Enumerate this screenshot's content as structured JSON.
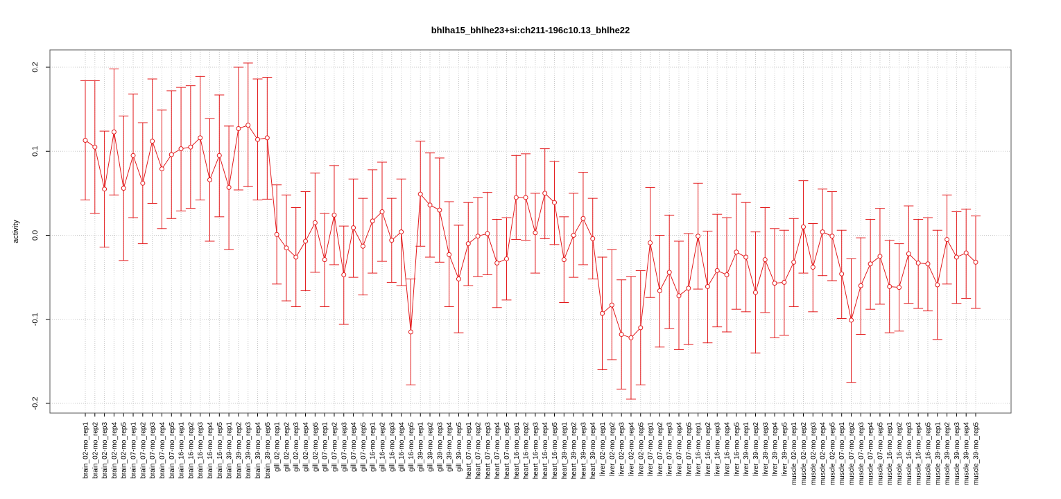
{
  "chart_data": {
    "type": "line",
    "title": "bhlha15_bhlhe23+si:ch211-196c10.13_bhlhe22",
    "xlabel": "",
    "ylabel": "activity",
    "ylim": [
      -0.21,
      0.21
    ],
    "yticks": [
      -0.2,
      -0.1,
      0.0,
      0.1,
      0.2
    ],
    "ytick_labels": [
      "-0.2",
      "-0.1",
      "0.0",
      "0.1",
      "0.2"
    ],
    "grid": true,
    "colors": {
      "series": "#e31a1c",
      "grid": "#c8c8c8",
      "frame": "#555555"
    },
    "categories": [
      "brain_02-mo_rep1",
      "brain_02-mo_rep2",
      "brain_02-mo_rep3",
      "brain_02-mo_rep4",
      "brain_02-mo_rep5",
      "brain_07-mo_rep1",
      "brain_07-mo_rep2",
      "brain_07-mo_rep3",
      "brain_07-mo_rep4",
      "brain_07-mo_rep5",
      "brain_16-mo_rep1",
      "brain_16-mo_rep2",
      "brain_16-mo_rep3",
      "brain_16-mo_rep4",
      "brain_16-mo_rep5",
      "brain_39-mo_rep1",
      "brain_39-mo_rep2",
      "brain_39-mo_rep3",
      "brain_39-mo_rep4",
      "brain_39-mo_rep5",
      "gill_02-mo_rep1",
      "gill_02-mo_rep2",
      "gill_02-mo_rep3",
      "gill_02-mo_rep4",
      "gill_02-mo_rep5",
      "gill_07-mo_rep1",
      "gill_07-mo_rep2",
      "gill_07-mo_rep3",
      "gill_07-mo_rep4",
      "gill_07-mo_rep5",
      "gill_16-mo_rep1",
      "gill_16-mo_rep2",
      "gill_16-mo_rep3",
      "gill_16-mo_rep4",
      "gill_16-mo_rep5",
      "gill_39-mo_rep1",
      "gill_39-mo_rep2",
      "gill_39-mo_rep3",
      "gill_39-mo_rep4",
      "gill_39-mo_rep5",
      "heart_07-mo_rep1",
      "heart_07-mo_rep2",
      "heart_07-mo_rep3",
      "heart_07-mo_rep4",
      "heart_07-mo_rep5",
      "heart_16-mo_rep1",
      "heart_16-mo_rep2",
      "heart_16-mo_rep3",
      "heart_16-mo_rep4",
      "heart_16-mo_rep5",
      "heart_39-mo_rep1",
      "heart_39-mo_rep2",
      "heart_39-mo_rep3",
      "heart_39-mo_rep4",
      "liver_02-mo_rep1",
      "liver_02-mo_rep2",
      "liver_02-mo_rep3",
      "liver_02-mo_rep4",
      "liver_02-mo_rep5",
      "liver_07-mo_rep1",
      "liver_07-mo_rep2",
      "liver_07-mo_rep3",
      "liver_07-mo_rep4",
      "liver_07-mo_rep5",
      "liver_16-mo_rep1",
      "liver_16-mo_rep2",
      "liver_16-mo_rep3",
      "liver_16-mo_rep4",
      "liver_16-mo_rep5",
      "liver_39-mo_rep1",
      "liver_39-mo_rep2",
      "liver_39-mo_rep3",
      "liver_39-mo_rep4",
      "liver_39-mo_rep5",
      "muscle_02-mo_rep1",
      "muscle_02-mo_rep2",
      "muscle_02-mo_rep3",
      "muscle_02-mo_rep4",
      "muscle_02-mo_rep5",
      "muscle_07-mo_rep1",
      "muscle_07-mo_rep2",
      "muscle_07-mo_rep3",
      "muscle_07-mo_rep4",
      "muscle_07-mo_rep5",
      "muscle_16-mo_rep1",
      "muscle_16-mo_rep2",
      "muscle_16-mo_rep3",
      "muscle_16-mo_rep4",
      "muscle_16-mo_rep5",
      "muscle_39-mo_rep1",
      "muscle_39-mo_rep2",
      "muscle_39-mo_rep3",
      "muscle_39-mo_rep4",
      "muscle_39-mo_rep5"
    ],
    "series": [
      {
        "values": [
          0.113,
          0.105,
          0.055,
          0.123,
          0.056,
          0.095,
          0.062,
          0.112,
          0.079,
          0.096,
          0.103,
          0.105,
          0.116,
          0.066,
          0.095,
          0.057,
          0.127,
          0.131,
          0.114,
          0.116,
          0.001,
          -0.015,
          -0.026,
          -0.007,
          0.015,
          -0.029,
          0.024,
          -0.047,
          0.009,
          -0.013,
          0.017,
          0.028,
          -0.006,
          0.004,
          -0.115,
          0.049,
          0.036,
          0.03,
          -0.023,
          -0.052,
          -0.01,
          -0.001,
          0.002,
          -0.033,
          -0.028,
          0.045,
          0.045,
          0.003,
          0.05,
          0.039,
          -0.029,
          0.0,
          0.02,
          -0.004,
          -0.093,
          -0.083,
          -0.118,
          -0.122,
          -0.11,
          -0.009,
          -0.066,
          -0.044,
          -0.072,
          -0.063,
          -0.001,
          -0.061,
          -0.042,
          -0.047,
          -0.02,
          -0.026,
          -0.068,
          -0.029,
          -0.057,
          -0.056,
          -0.032,
          0.01,
          -0.038,
          0.004,
          -0.001,
          -0.046,
          -0.101,
          -0.06,
          -0.034,
          -0.025,
          -0.061,
          -0.062,
          -0.022,
          -0.033,
          -0.034,
          -0.059,
          -0.005,
          -0.026,
          -0.021,
          -0.032
        ],
        "upper": [
          0.184,
          0.184,
          0.124,
          0.198,
          0.142,
          0.168,
          0.134,
          0.186,
          0.149,
          0.172,
          0.176,
          0.178,
          0.189,
          0.139,
          0.167,
          0.13,
          0.2,
          0.205,
          0.186,
          0.188,
          0.06,
          0.048,
          0.033,
          0.052,
          0.074,
          0.026,
          0.083,
          0.011,
          0.067,
          0.044,
          0.078,
          0.087,
          0.044,
          0.067,
          -0.052,
          0.112,
          0.098,
          0.092,
          0.04,
          0.012,
          0.039,
          0.045,
          0.051,
          0.019,
          0.021,
          0.095,
          0.097,
          0.05,
          0.103,
          0.088,
          0.022,
          0.05,
          0.075,
          0.044,
          -0.026,
          -0.017,
          -0.053,
          -0.049,
          -0.042,
          0.057,
          0.0,
          0.024,
          -0.007,
          0.002,
          0.062,
          0.005,
          0.025,
          0.021,
          0.049,
          0.039,
          0.004,
          0.033,
          0.008,
          0.006,
          0.02,
          0.065,
          0.014,
          0.055,
          0.052,
          0.006,
          -0.028,
          -0.003,
          0.019,
          0.032,
          -0.006,
          -0.01,
          0.035,
          0.019,
          0.021,
          0.006,
          0.048,
          0.028,
          0.031,
          0.023
        ],
        "lower": [
          0.042,
          0.026,
          -0.014,
          0.048,
          -0.03,
          0.021,
          -0.01,
          0.038,
          0.008,
          0.02,
          0.029,
          0.032,
          0.042,
          -0.007,
          0.022,
          -0.017,
          0.054,
          0.058,
          0.042,
          0.043,
          -0.058,
          -0.078,
          -0.085,
          -0.066,
          -0.044,
          -0.085,
          -0.035,
          -0.106,
          -0.05,
          -0.071,
          -0.045,
          -0.031,
          -0.056,
          -0.06,
          -0.178,
          -0.013,
          -0.026,
          -0.032,
          -0.085,
          -0.116,
          -0.06,
          -0.049,
          -0.047,
          -0.086,
          -0.077,
          -0.005,
          -0.006,
          -0.045,
          -0.004,
          -0.011,
          -0.08,
          -0.05,
          -0.035,
          -0.052,
          -0.16,
          -0.148,
          -0.183,
          -0.195,
          -0.178,
          -0.074,
          -0.133,
          -0.111,
          -0.136,
          -0.13,
          -0.064,
          -0.128,
          -0.109,
          -0.115,
          -0.088,
          -0.091,
          -0.14,
          -0.092,
          -0.122,
          -0.119,
          -0.085,
          -0.045,
          -0.091,
          -0.048,
          -0.054,
          -0.099,
          -0.175,
          -0.118,
          -0.088,
          -0.082,
          -0.116,
          -0.114,
          -0.081,
          -0.087,
          -0.09,
          -0.124,
          -0.058,
          -0.081,
          -0.075,
          -0.087
        ]
      }
    ]
  }
}
